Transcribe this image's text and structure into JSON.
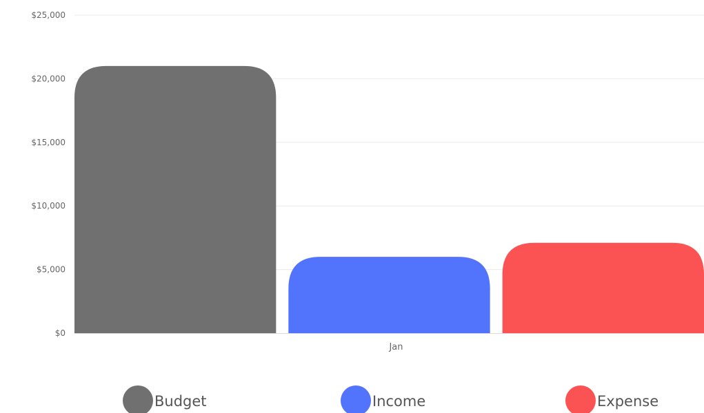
{
  "chart_data": {
    "type": "bar",
    "categories": [
      "Jan"
    ],
    "series": [
      {
        "name": "Budget",
        "values": [
          21000
        ],
        "color": "#707070"
      },
      {
        "name": "Income",
        "values": [
          6000
        ],
        "color": "#5273fb"
      },
      {
        "name": "Expense",
        "values": [
          7100
        ],
        "color": "#fb5353"
      }
    ],
    "ylim": [
      0,
      25000
    ],
    "yticks": [
      0,
      5000,
      10000,
      15000,
      20000,
      25000
    ],
    "ytick_labels": [
      "$0",
      "$5,000",
      "$10,000",
      "$15,000",
      "$20,000",
      "$25,000"
    ],
    "grid": true,
    "legend_position": "bottom",
    "bar_corners": "rounded-top"
  }
}
